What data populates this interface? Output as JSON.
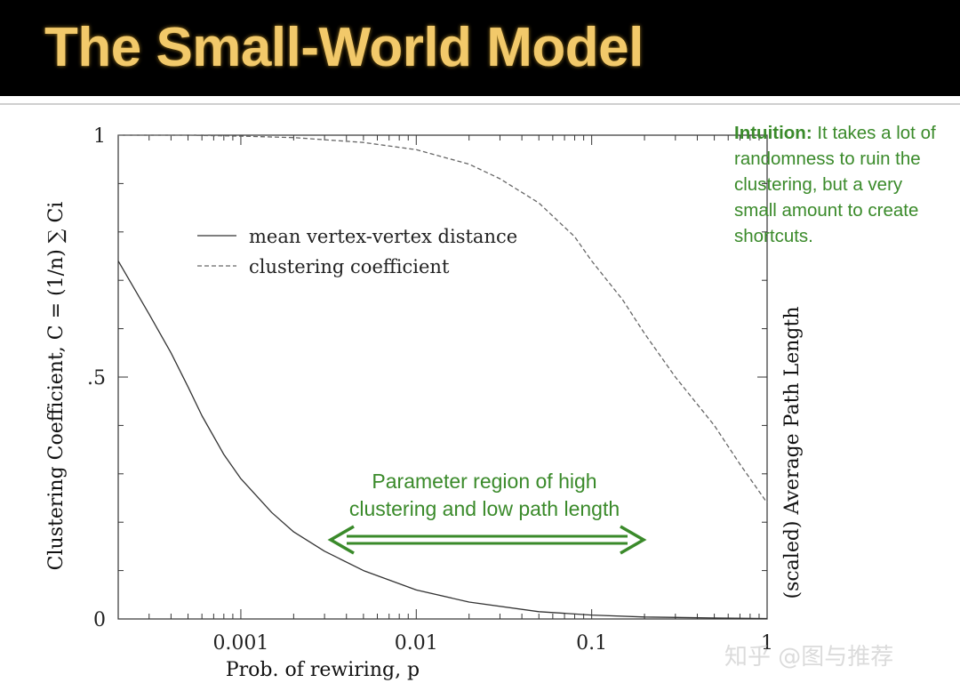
{
  "slide": {
    "title": "The Small-World Model"
  },
  "annotations": {
    "intuition_label": "Intuition:",
    "intuition_text": " It takes a lot of randomness to ruin the clustering, but a very small amount to create shortcuts.",
    "region_line1": "Parameter region of high",
    "region_line2": "clustering and low path length",
    "arrow_color": "#3a8a2a"
  },
  "watermark": "知乎 @图与推荐",
  "chart_data": {
    "type": "line",
    "xscale": "log",
    "xlim": [
      0.0002,
      1
    ],
    "ylim": [
      0,
      1
    ],
    "xlabel": "Prob. of rewiring, p",
    "ylabel": "Clustering Coefficient, C = (1/n) ∑ Ci",
    "ylabel_right": "(scaled) Average Path Length",
    "x_ticks": [
      {
        "value": 0.001,
        "label": "0.001"
      },
      {
        "value": 0.01,
        "label": "0.01"
      },
      {
        "value": 0.1,
        "label": "0.1"
      },
      {
        "value": 1,
        "label": "1"
      }
    ],
    "y_ticks": [
      {
        "value": 0,
        "label": "0"
      },
      {
        "value": 0.5,
        "label": ".5"
      },
      {
        "value": 1,
        "label": "1"
      }
    ],
    "legend_position": "upper-left",
    "series": [
      {
        "name": "mean vertex-vertex distance",
        "style": "solid",
        "x": [
          0.0002,
          0.0003,
          0.0004,
          0.0005,
          0.0006,
          0.0008,
          0.001,
          0.0015,
          0.002,
          0.003,
          0.005,
          0.01,
          0.02,
          0.05,
          0.1,
          0.2,
          0.5,
          1
        ],
        "y": [
          0.74,
          0.63,
          0.55,
          0.48,
          0.42,
          0.34,
          0.29,
          0.22,
          0.18,
          0.14,
          0.1,
          0.06,
          0.035,
          0.015,
          0.008,
          0.004,
          0.002,
          0.001
        ]
      },
      {
        "name": "clustering coefficient",
        "style": "dashed",
        "x": [
          0.0002,
          0.0005,
          0.001,
          0.002,
          0.005,
          0.01,
          0.02,
          0.03,
          0.05,
          0.08,
          0.1,
          0.15,
          0.2,
          0.3,
          0.5,
          0.7,
          1
        ],
        "y": [
          1.0,
          1.0,
          0.998,
          0.995,
          0.985,
          0.97,
          0.94,
          0.91,
          0.86,
          0.79,
          0.74,
          0.66,
          0.59,
          0.5,
          0.4,
          0.32,
          0.24
        ]
      }
    ]
  }
}
